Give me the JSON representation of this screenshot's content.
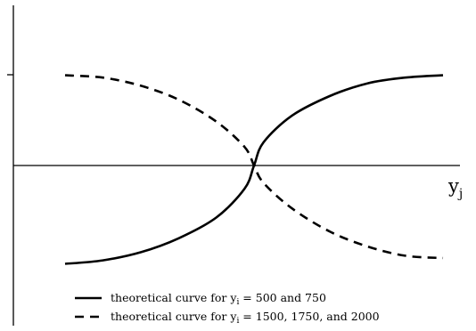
{
  "chart_data": {
    "type": "line",
    "title": "",
    "xlabel": {
      "base": "y",
      "subscript": "j"
    },
    "ylabel": "",
    "grid": false,
    "legend_position": "bottom-left",
    "series": [
      {
        "style": "solid",
        "legend": {
          "before": "theoretical curve for y",
          "subscript": "i",
          "after": " = 500 and 750"
        },
        "points": [
          [
            -1.0,
            -0.85
          ],
          [
            -0.8,
            -0.82
          ],
          [
            -0.6,
            -0.75
          ],
          [
            -0.4,
            -0.63
          ],
          [
            -0.2,
            -0.45
          ],
          [
            -0.05,
            -0.2
          ],
          [
            0.0,
            0.0
          ],
          [
            0.05,
            0.2
          ],
          [
            0.2,
            0.43
          ],
          [
            0.4,
            0.6
          ],
          [
            0.6,
            0.71
          ],
          [
            0.8,
            0.76
          ],
          [
            1.0,
            0.78
          ]
        ]
      },
      {
        "style": "dashed",
        "legend": {
          "before": "theoretical curve for y",
          "subscript": "i",
          "after": " = 1500, 1750, and 2000"
        },
        "points": [
          [
            -1.0,
            0.78
          ],
          [
            -0.8,
            0.76
          ],
          [
            -0.6,
            0.69
          ],
          [
            -0.4,
            0.57
          ],
          [
            -0.2,
            0.38
          ],
          [
            -0.05,
            0.16
          ],
          [
            0.0,
            0.0
          ],
          [
            0.05,
            -0.15
          ],
          [
            0.2,
            -0.37
          ],
          [
            0.4,
            -0.57
          ],
          [
            0.6,
            -0.7
          ],
          [
            0.8,
            -0.78
          ],
          [
            1.0,
            -0.8
          ]
        ]
      }
    ]
  }
}
